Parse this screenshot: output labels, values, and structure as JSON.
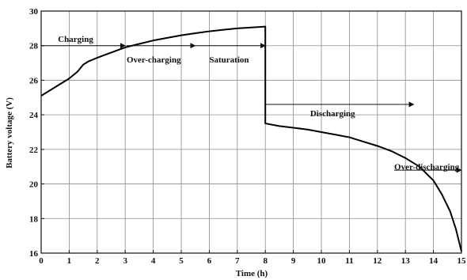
{
  "chart_data": {
    "type": "line",
    "title": "",
    "xlabel": "Time (h)",
    "ylabel": "Battery voltage (V)",
    "xlim": [
      0,
      15
    ],
    "ylim": [
      16,
      30
    ],
    "xticks": [
      0,
      1,
      2,
      3,
      4,
      5,
      6,
      7,
      8,
      9,
      10,
      11,
      12,
      13,
      14,
      15
    ],
    "yticks": [
      16,
      18,
      20,
      22,
      24,
      26,
      28,
      30
    ],
    "grid": true,
    "series": [
      {
        "x": [
          0,
          0.3,
          0.6,
          1.0,
          1.3,
          1.5,
          1.7,
          2.0,
          2.5,
          3.0,
          3.5,
          4.0,
          4.5,
          5.0,
          5.5,
          6.0,
          6.5,
          7.0,
          7.5,
          8.0,
          8.0,
          8.5,
          9.0,
          9.5,
          10.0,
          10.5,
          11.0,
          11.5,
          12.0,
          12.5,
          13.0,
          13.5,
          14.0,
          14.3,
          14.6,
          14.8,
          15.0
        ],
        "y": [
          25.1,
          25.4,
          25.7,
          26.1,
          26.5,
          26.9,
          27.1,
          27.3,
          27.6,
          27.9,
          28.1,
          28.3,
          28.45,
          28.6,
          28.72,
          28.83,
          28.92,
          29.0,
          29.05,
          29.1,
          23.5,
          23.35,
          23.25,
          23.15,
          23.0,
          22.85,
          22.7,
          22.45,
          22.2,
          21.9,
          21.5,
          21.0,
          20.2,
          19.4,
          18.4,
          17.4,
          16.1
        ],
        "color": "#000000"
      }
    ],
    "annotations": [
      {
        "text": "Charging",
        "x": 0.6,
        "y": 28.4,
        "arrow_from": [
          0,
          28.0
        ],
        "arrow_to": [
          3.0,
          28.0
        ]
      },
      {
        "text": "Over-charging",
        "x": 3.05,
        "y": 27.2,
        "arrow_from": [
          3.05,
          28.0
        ],
        "arrow_to": [
          5.5,
          28.0
        ]
      },
      {
        "text": "Saturation",
        "x": 6.0,
        "y": 27.2,
        "arrow_from": [
          5.5,
          28.0
        ],
        "arrow_to": [
          8.0,
          28.0
        ]
      },
      {
        "text": "Discharging",
        "x": 9.6,
        "y": 24.1,
        "arrow_from": [
          8.0,
          24.6
        ],
        "arrow_to": [
          13.3,
          24.6
        ]
      },
      {
        "text": "Over-discharging",
        "x": 12.6,
        "y": 21.0,
        "arrow_from": [
          12.6,
          20.8
        ],
        "arrow_to": [
          15.0,
          20.8
        ]
      }
    ]
  }
}
